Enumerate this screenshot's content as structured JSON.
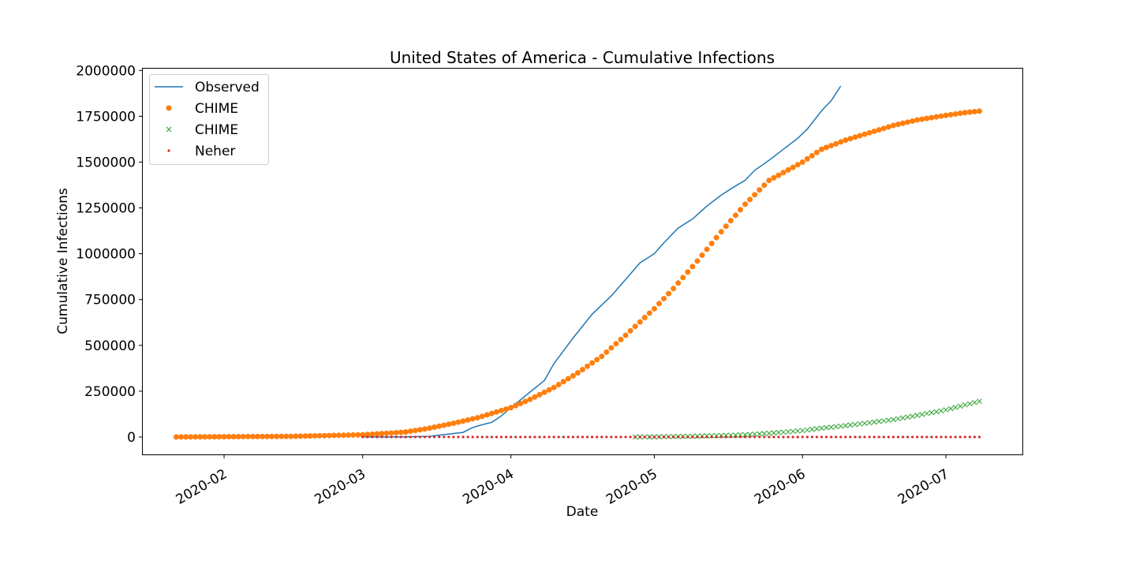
{
  "chart_data": {
    "type": "line",
    "title": "United States of America - Cumulative Infections",
    "xlabel": "Date",
    "ylabel": "Cumulative Infections",
    "xlim": [
      "2020-01-15",
      "2020-07-17"
    ],
    "ylim": [
      -95000,
      2010000
    ],
    "x_ticks": [
      "2020-02-01",
      "2020-03-01",
      "2020-04-01",
      "2020-05-01",
      "2020-06-01",
      "2020-07-01"
    ],
    "x_tick_labels": [
      "2020-02",
      "2020-03",
      "2020-04",
      "2020-05",
      "2020-06",
      "2020-07"
    ],
    "y_ticks": [
      0,
      250000,
      500000,
      750000,
      1000000,
      1250000,
      1500000,
      1750000,
      2000000
    ],
    "y_tick_labels": [
      "0",
      "250000",
      "500000",
      "750000",
      "1000000",
      "1250000",
      "1500000",
      "1750000",
      "2000000"
    ],
    "grid": false,
    "legend_position": "top-left",
    "series": [
      {
        "name": "Observed",
        "style": "line",
        "color": "#1f77b4",
        "x_start": "2020-03-01",
        "x_end": "2020-06-09",
        "points": [
          [
            "2020-03-01",
            75
          ],
          [
            "2020-03-05",
            220
          ],
          [
            "2020-03-10",
            960
          ],
          [
            "2020-03-15",
            3500
          ],
          [
            "2020-03-20",
            19000
          ],
          [
            "2020-03-22",
            25000
          ],
          [
            "2020-03-24",
            52000
          ],
          [
            "2020-03-26",
            67000
          ],
          [
            "2020-03-28",
            80000
          ],
          [
            "2020-03-30",
            115000
          ],
          [
            "2020-04-01",
            160000
          ],
          [
            "2020-04-05",
            245000
          ],
          [
            "2020-04-08",
            308000
          ],
          [
            "2020-04-10",
            400000
          ],
          [
            "2020-04-12",
            470000
          ],
          [
            "2020-04-14",
            540000
          ],
          [
            "2020-04-16",
            605000
          ],
          [
            "2020-04-18",
            670000
          ],
          [
            "2020-04-20",
            720000
          ],
          [
            "2020-04-22",
            770000
          ],
          [
            "2020-04-24",
            830000
          ],
          [
            "2020-04-26",
            890000
          ],
          [
            "2020-04-28",
            950000
          ],
          [
            "2020-05-01",
            1000000
          ],
          [
            "2020-05-03",
            1060000
          ],
          [
            "2020-05-06",
            1140000
          ],
          [
            "2020-05-09",
            1190000
          ],
          [
            "2020-05-12",
            1260000
          ],
          [
            "2020-05-15",
            1320000
          ],
          [
            "2020-05-18",
            1370000
          ],
          [
            "2020-05-20",
            1400000
          ],
          [
            "2020-05-22",
            1455000
          ],
          [
            "2020-05-25",
            1510000
          ],
          [
            "2020-05-28",
            1570000
          ],
          [
            "2020-05-31",
            1630000
          ],
          [
            "2020-06-02",
            1680000
          ],
          [
            "2020-06-05",
            1780000
          ],
          [
            "2020-06-07",
            1835000
          ],
          [
            "2020-06-09",
            1915000
          ]
        ]
      },
      {
        "name": "CHIME",
        "style": "circle",
        "color": "#ff7f0e",
        "x_start": "2020-01-22",
        "x_end": "2020-07-08",
        "points": [
          [
            "2020-01-22",
            0
          ],
          [
            "2020-02-15",
            3500
          ],
          [
            "2020-03-01",
            12000
          ],
          [
            "2020-03-10",
            27000
          ],
          [
            "2020-03-15",
            48000
          ],
          [
            "2020-03-20",
            75000
          ],
          [
            "2020-03-25",
            105000
          ],
          [
            "2020-04-01",
            160000
          ],
          [
            "2020-04-05",
            205000
          ],
          [
            "2020-04-10",
            270000
          ],
          [
            "2020-04-15",
            350000
          ],
          [
            "2020-04-20",
            440000
          ],
          [
            "2020-04-25",
            555000
          ],
          [
            "2020-05-01",
            700000
          ],
          [
            "2020-05-05",
            810000
          ],
          [
            "2020-05-10",
            960000
          ],
          [
            "2020-05-15",
            1120000
          ],
          [
            "2020-05-20",
            1270000
          ],
          [
            "2020-05-25",
            1400000
          ],
          [
            "2020-06-01",
            1500000
          ],
          [
            "2020-06-05",
            1570000
          ],
          [
            "2020-06-10",
            1620000
          ],
          [
            "2020-06-15",
            1660000
          ],
          [
            "2020-06-20",
            1700000
          ],
          [
            "2020-06-25",
            1730000
          ],
          [
            "2020-07-01",
            1755000
          ],
          [
            "2020-07-05",
            1770000
          ],
          [
            "2020-07-08",
            1778000
          ]
        ]
      },
      {
        "name": "CHIME",
        "style": "x",
        "color": "#2ca02c",
        "x_start": "2020-04-27",
        "x_end": "2020-07-08",
        "points": [
          [
            "2020-04-27",
            0
          ],
          [
            "2020-05-01",
            900
          ],
          [
            "2020-05-10",
            4500
          ],
          [
            "2020-05-20",
            12000
          ],
          [
            "2020-05-25",
            20000
          ],
          [
            "2020-06-01",
            35000
          ],
          [
            "2020-06-05",
            48000
          ],
          [
            "2020-06-10",
            62000
          ],
          [
            "2020-06-15",
            78000
          ],
          [
            "2020-06-20",
            95000
          ],
          [
            "2020-06-25",
            118000
          ],
          [
            "2020-07-01",
            148000
          ],
          [
            "2020-07-05",
            175000
          ],
          [
            "2020-07-08",
            195000
          ]
        ]
      },
      {
        "name": "Neher",
        "style": "point",
        "color": "#d62728",
        "x_start": "2020-03-01",
        "x_end": "2020-07-08",
        "points": [
          [
            "2020-03-01",
            0
          ],
          [
            "2020-07-08",
            0
          ]
        ]
      }
    ]
  }
}
